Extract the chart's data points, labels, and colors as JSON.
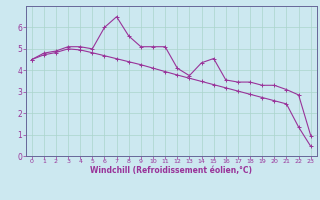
{
  "title": "",
  "xlabel": "Windchill (Refroidissement éolien,°C)",
  "ylabel": "",
  "background_color": "#cce8f0",
  "grid_color": "#aad4cc",
  "line_color": "#993399",
  "spine_color": "#666699",
  "xlim": [
    -0.5,
    23.5
  ],
  "ylim": [
    0,
    7
  ],
  "xticks": [
    0,
    1,
    2,
    3,
    4,
    5,
    6,
    7,
    8,
    9,
    10,
    11,
    12,
    13,
    14,
    15,
    16,
    17,
    18,
    19,
    20,
    21,
    22,
    23
  ],
  "yticks": [
    0,
    1,
    2,
    3,
    4,
    5,
    6
  ],
  "line1_x": [
    0,
    1,
    2,
    3,
    4,
    5,
    6,
    7,
    8,
    9,
    10,
    11,
    12,
    13,
    14,
    15,
    16,
    17,
    18,
    19,
    20,
    21,
    22,
    23
  ],
  "line1_y": [
    4.5,
    4.8,
    4.9,
    5.1,
    5.1,
    5.0,
    6.0,
    6.5,
    5.6,
    5.1,
    5.1,
    5.1,
    4.1,
    3.75,
    4.35,
    4.55,
    3.55,
    3.45,
    3.45,
    3.3,
    3.3,
    3.1,
    2.85,
    0.95
  ],
  "line2_x": [
    0,
    1,
    2,
    3,
    4,
    5,
    6,
    7,
    8,
    9,
    10,
    11,
    12,
    13,
    14,
    15,
    16,
    17,
    18,
    19,
    20,
    21,
    22,
    23
  ],
  "line2_y": [
    4.5,
    4.72,
    4.83,
    5.0,
    4.95,
    4.82,
    4.68,
    4.54,
    4.4,
    4.26,
    4.1,
    3.94,
    3.78,
    3.63,
    3.48,
    3.33,
    3.18,
    3.03,
    2.88,
    2.73,
    2.58,
    2.43,
    1.35,
    0.45
  ],
  "xlabel_fontsize": 5.5,
  "tick_fontsize_x": 4.5,
  "tick_fontsize_y": 5.5
}
